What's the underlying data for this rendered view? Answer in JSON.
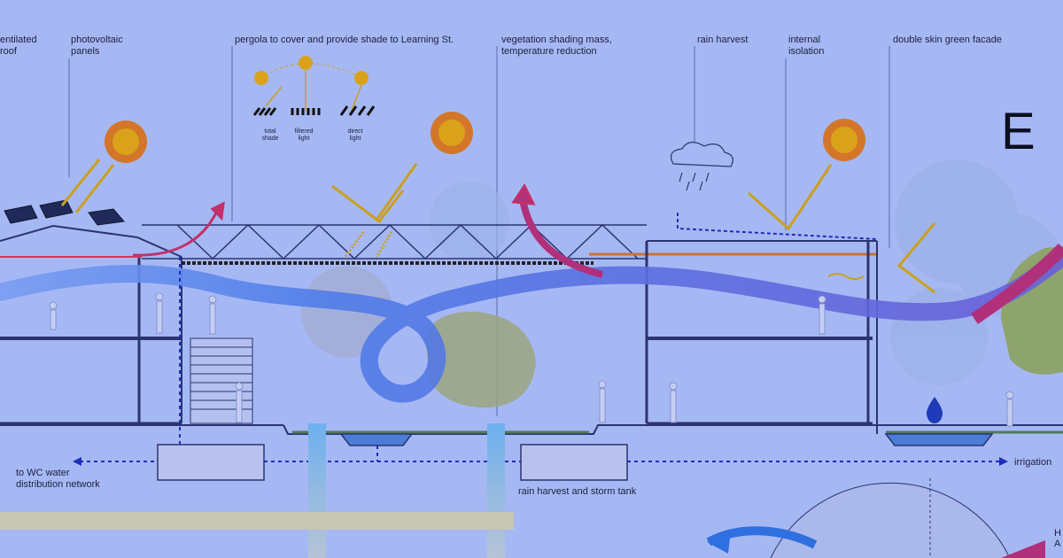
{
  "section_label": "E",
  "annotations": {
    "ventilated_roof": "entilated\nroof",
    "photovoltaic": "photovoltaic\npanels",
    "pergola": "pergola to cover and provide shade to Learning St.",
    "vegetation": "vegetation shading mass,\ntemperature reduction",
    "rain_harvest": "rain harvest",
    "internal_isolation": "internal\nisolation",
    "double_skin": "double skin green facade",
    "wc_network": "to WC water\ndistribution network",
    "storm_tank": "rain harvest and storm tank",
    "irrigation": "irrigation"
  },
  "shade_legend": {
    "total": "total\nshade",
    "filtered": "filtered\nlight",
    "direct": "direct\nlight"
  },
  "inset_partial": "H\nA"
}
